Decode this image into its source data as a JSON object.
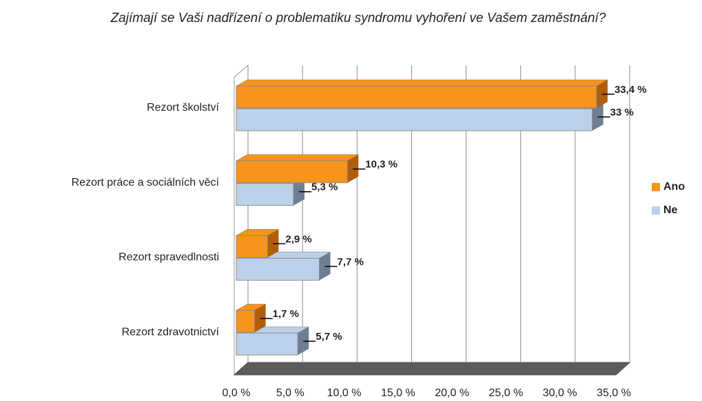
{
  "chart_data": {
    "type": "bar3d_horizontal",
    "title": "Zajímají se Vaši nadřízení o problematiku syndromu vyhoření ve Vašem zaměstnání?",
    "categories": [
      "Rezort školství",
      "Rezort práce a sociálních věcí",
      "Rezort spravedlnosti",
      "Rezort zdravotnictví"
    ],
    "series": [
      {
        "name": "Ano",
        "color": "#f7941d",
        "side_color": "#b05e0a",
        "values": [
          33.4,
          10.3,
          2.9,
          1.7
        ],
        "value_labels": [
          "33,4 %",
          "10,3 %",
          "2,9 %",
          "1,7 %"
        ]
      },
      {
        "name": "Ne",
        "color": "#bdd0e9",
        "side_color": "#6e7e93",
        "values": [
          33,
          5.3,
          7.7,
          5.7
        ],
        "value_labels": [
          "33 %",
          "5,3 %",
          "7,7 %",
          "5,7 %"
        ]
      }
    ],
    "xlim": [
      0,
      35
    ],
    "xticks": [
      {
        "value": 0,
        "label": "0,0 %"
      },
      {
        "value": 5,
        "label": "5,0 %"
      },
      {
        "value": 10,
        "label": "10,0 %"
      },
      {
        "value": 15,
        "label": "15,0 %"
      },
      {
        "value": 20,
        "label": "20,0 %"
      },
      {
        "value": 25,
        "label": "25,0 %"
      },
      {
        "value": 30,
        "label": "30,0 %"
      },
      {
        "value": 35,
        "label": "35,0 %"
      }
    ],
    "grid": true,
    "legend": "right"
  }
}
